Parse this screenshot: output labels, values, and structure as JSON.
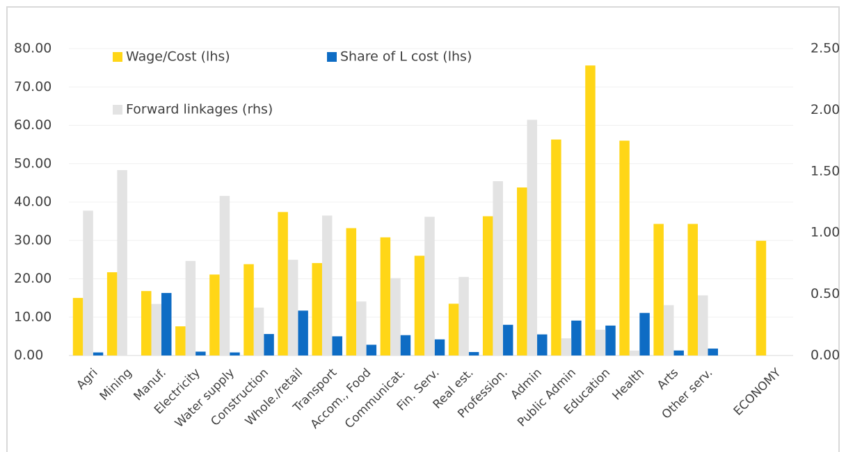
{
  "chart_data": {
    "type": "bar",
    "categories": [
      "Agri",
      "Mining",
      "Manuf.",
      "Electricity",
      "Water supply",
      "Construction",
      "Whole./retail",
      "Transport",
      "Accom., Food",
      "Communicat.",
      "Fin. Serv.",
      "Real est.",
      "Profession.",
      "Admin",
      "Public Admin",
      "Education",
      "Health",
      "Arts",
      "Other serv.",
      null,
      "ECONOMY"
    ],
    "series": [
      {
        "name": "Wage/Cost (lhs)",
        "color": "#ffd617",
        "values": [
          15.0,
          21.7,
          16.8,
          7.6,
          21.1,
          23.8,
          37.4,
          24.1,
          33.2,
          30.8,
          26.0,
          13.5,
          36.3,
          43.8,
          56.3,
          75.6,
          56.0,
          34.3,
          34.3,
          null,
          29.9
        ]
      },
      {
        "name": "Share of L cost (lhs)",
        "color": "#0e6cc4",
        "values": [
          0.8,
          null,
          16.3,
          1.0,
          0.8,
          5.6,
          11.7,
          5.0,
          2.8,
          5.3,
          4.2,
          0.9,
          8.0,
          5.5,
          9.1,
          7.8,
          11.1,
          1.3,
          1.8,
          null,
          null
        ]
      },
      {
        "name": "Forward linkages (rhs)",
        "color": "#e3e3e3",
        "axis": "y2",
        "values": [
          1.18,
          1.51,
          0.42,
          0.77,
          1.3,
          0.39,
          0.78,
          1.14,
          0.44,
          0.63,
          1.13,
          0.64,
          1.42,
          1.92,
          0.14,
          0.21,
          0.04,
          0.41,
          0.49,
          null,
          null
        ]
      }
    ],
    "ylim": [
      0,
      80
    ],
    "yticks": [
      {
        "value": 0,
        "label": "0.00"
      },
      {
        "value": 10,
        "label": "10.00"
      },
      {
        "value": 20,
        "label": "20.00"
      },
      {
        "value": 30,
        "label": "30.00"
      },
      {
        "value": 40,
        "label": "40.00"
      },
      {
        "value": 50,
        "label": "50.00"
      },
      {
        "value": 60,
        "label": "60.00"
      },
      {
        "value": 70,
        "label": "70.00"
      },
      {
        "value": 80,
        "label": "80.00"
      }
    ],
    "y2lim": [
      0,
      2.5
    ],
    "y2ticks": [
      {
        "value": 0,
        "label": "0.00"
      },
      {
        "value": 0.5,
        "label": "0.50"
      },
      {
        "value": 1,
        "label": "1.00"
      },
      {
        "value": 1.5,
        "label": "1.50"
      },
      {
        "value": 2,
        "label": "2.00"
      },
      {
        "value": 2.5,
        "label": "2.50"
      }
    ],
    "grid": true
  }
}
